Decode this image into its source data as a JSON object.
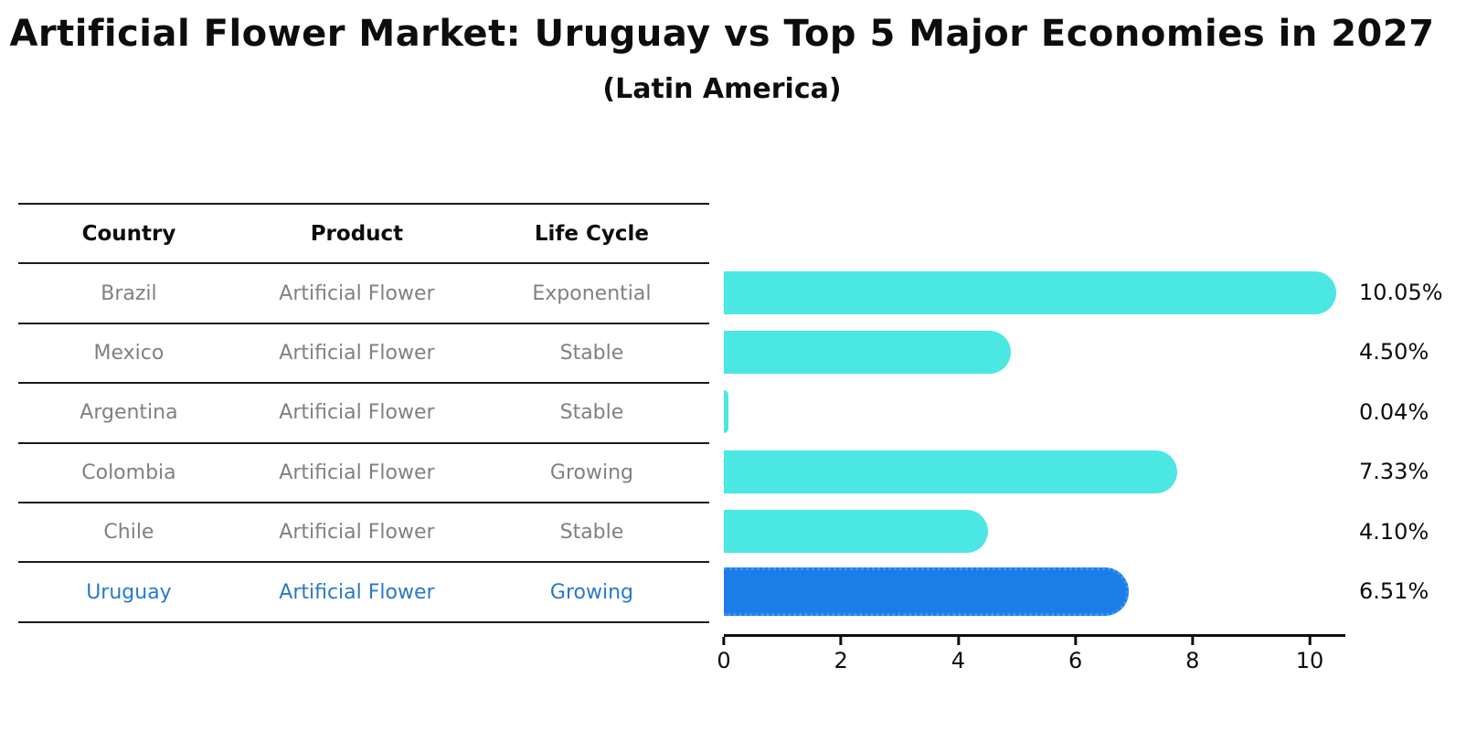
{
  "title": "Artificial Flower Market: Uruguay vs Top 5 Major Economies in 2027",
  "subtitle": "(Latin America)",
  "table": {
    "headers": [
      "Country",
      "Product",
      "Life Cycle"
    ],
    "rows": [
      {
        "country": "Brazil",
        "product": "Artificial Flower",
        "life_cycle": "Exponential"
      },
      {
        "country": "Mexico",
        "product": "Artificial Flower",
        "life_cycle": "Stable"
      },
      {
        "country": "Argentina",
        "product": "Artificial Flower",
        "life_cycle": "Stable"
      },
      {
        "country": "Colombia",
        "product": "Artificial Flower",
        "life_cycle": "Growing"
      },
      {
        "country": "Chile",
        "product": "Artificial Flower",
        "life_cycle": "Stable"
      },
      {
        "country": "Uruguay",
        "product": "Artificial Flower",
        "life_cycle": "Growing"
      }
    ]
  },
  "chart_data": {
    "type": "bar",
    "orientation": "horizontal",
    "title": "Artificial Flower Market: Uruguay vs Top 5 Major Economies in 2027",
    "subtitle": "(Latin America)",
    "categories": [
      "Brazil",
      "Mexico",
      "Argentina",
      "Colombia",
      "Chile",
      "Uruguay"
    ],
    "values": [
      10.05,
      4.5,
      0.04,
      7.33,
      4.1,
      6.51
    ],
    "labels": [
      "10.05%",
      "4.50%",
      "0.04%",
      "7.33%",
      "4.10%",
      "6.51%"
    ],
    "unit": "%",
    "xlim": [
      0,
      10.6
    ],
    "xticks": [
      0,
      2,
      4,
      6,
      8,
      10
    ],
    "grid": false,
    "legend": "none",
    "highlight_index": 5,
    "bar_color": "#4be7e3",
    "highlight_color": "#1a7de8",
    "highlight_border_color": "#3e96f0",
    "highlight_text_color": "#2878c8",
    "text_color": "#0d0d0d",
    "table_text_color": "#808080"
  }
}
